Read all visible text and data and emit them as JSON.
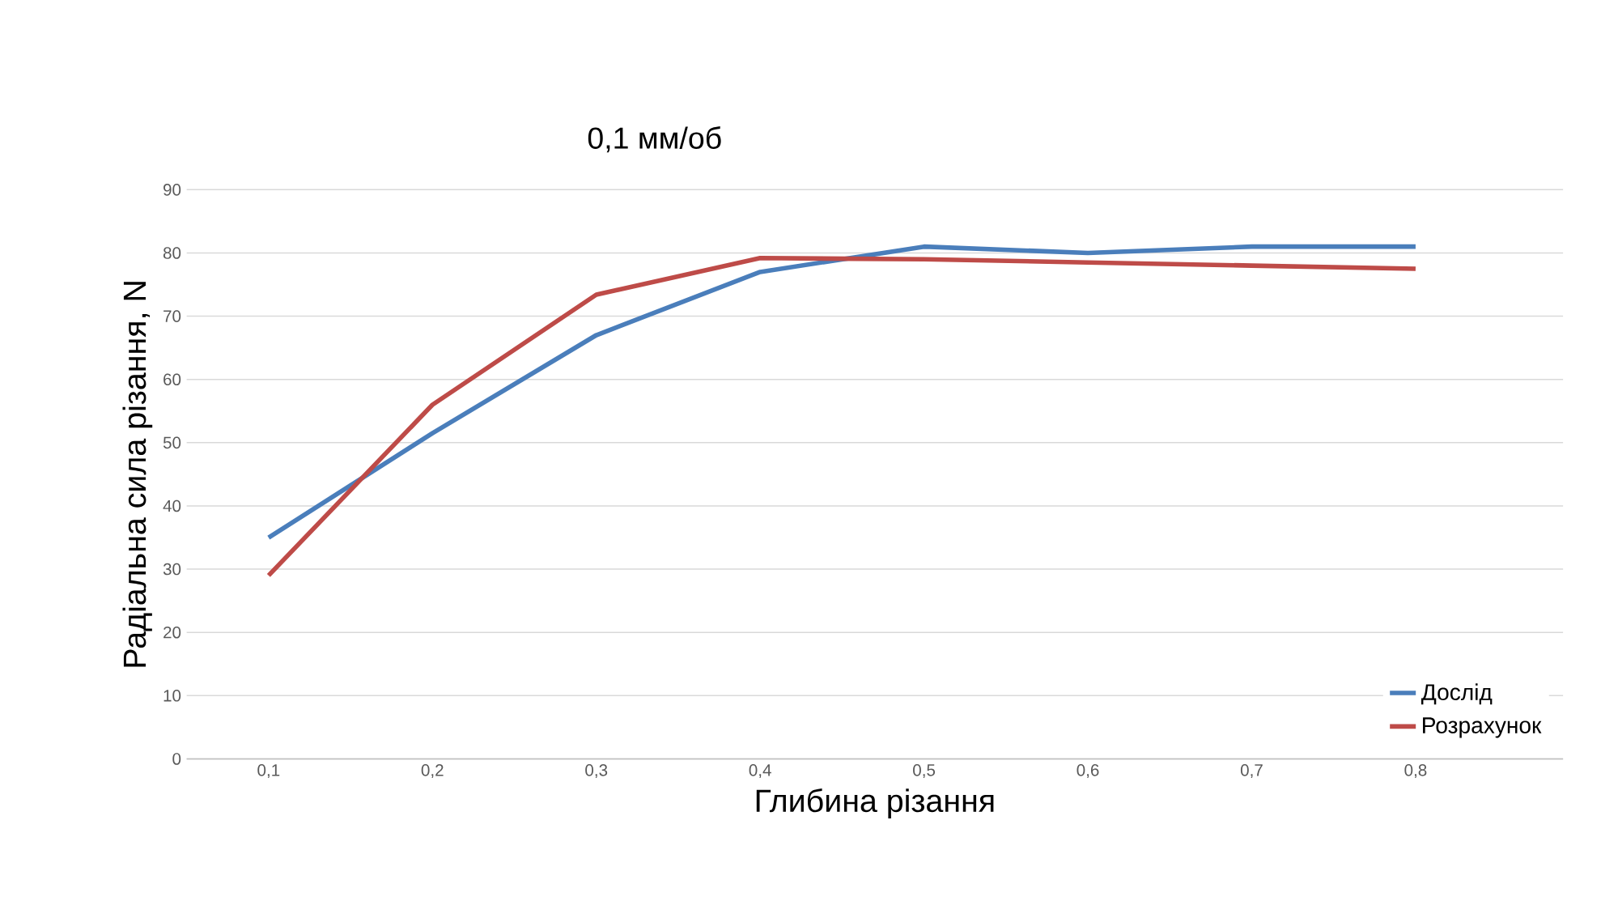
{
  "chart_data": {
    "type": "line",
    "title": "0,1 мм/об",
    "xlabel": "Глибина різання",
    "ylabel": "Радіальна сила різання, N",
    "categories": [
      "0,1",
      "0,2",
      "0,3",
      "0,4",
      "0,5",
      "0,6",
      "0,7",
      "0,8"
    ],
    "series": [
      {
        "name": "Дослід",
        "color": "#4a7ebb",
        "values": [
          35,
          51.5,
          67,
          77,
          81,
          80,
          81,
          81
        ]
      },
      {
        "name": "Розрахунок",
        "color": "#be4b48",
        "values": [
          29,
          56,
          73.4,
          79.2,
          79,
          78.5,
          78,
          77.5
        ]
      }
    ],
    "ylim": [
      0,
      90
    ],
    "yticks": [
      0,
      10,
      20,
      30,
      40,
      50,
      60,
      70,
      80,
      90
    ],
    "grid": "y",
    "legend": "bottom right",
    "marker": "none",
    "line_style": "solid"
  }
}
